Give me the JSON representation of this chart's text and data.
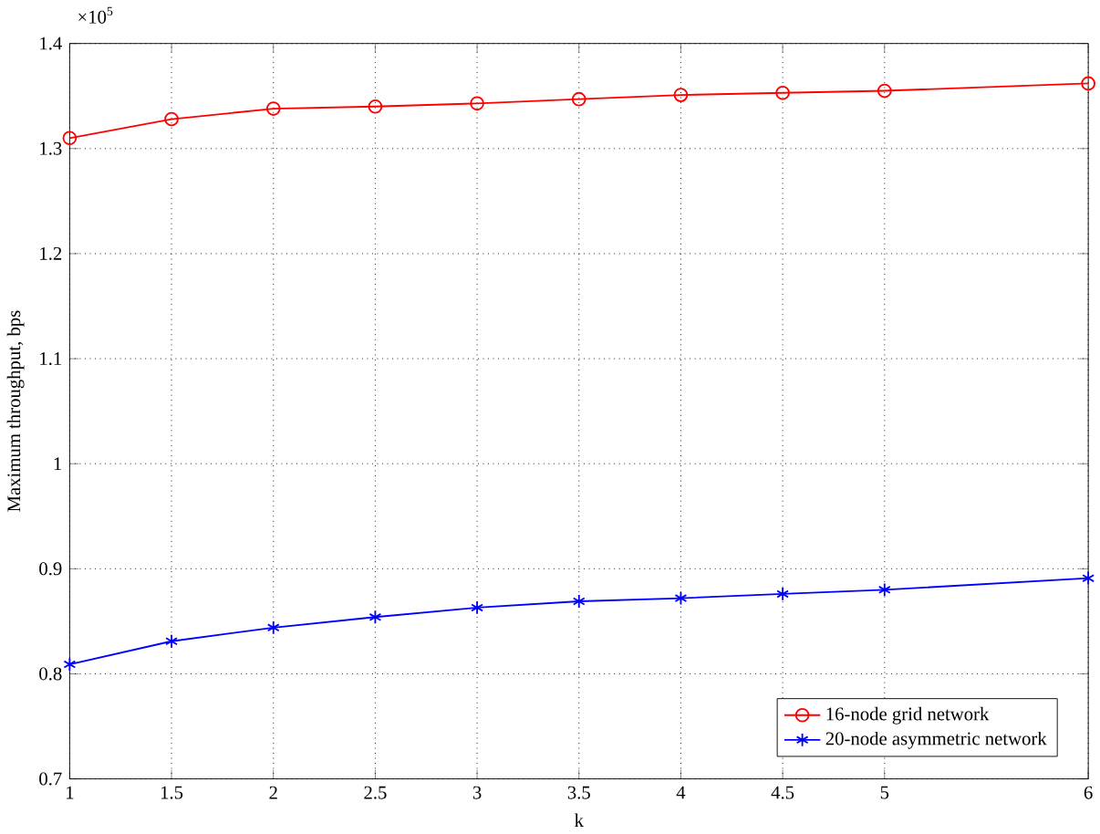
{
  "chart_data": {
    "type": "line",
    "xlabel": "k",
    "ylabel": "Maximum throughput, bps",
    "annotations": [
      "×10$^{5}$"
    ],
    "x": [
      1,
      1.5,
      2,
      2.5,
      3,
      3.5,
      4,
      4.5,
      5,
      6
    ],
    "series": [
      {
        "name": "16-node grid network",
        "color": "#ff0000",
        "marker": "circle",
        "values": [
          1.31,
          1.328,
          1.338,
          1.34,
          1.343,
          1.347,
          1.351,
          1.353,
          1.355,
          1.362
        ]
      },
      {
        "name": "20-node asymmetric network",
        "color": "#0000ff",
        "marker": "cross",
        "values": [
          0.809,
          0.831,
          0.844,
          0.854,
          0.863,
          0.869,
          0.872,
          0.876,
          0.88,
          0.891
        ]
      }
    ],
    "xlim": [
      1,
      6
    ],
    "xticks": [
      1,
      1.5,
      2,
      2.5,
      3,
      3.5,
      4,
      4.5,
      5,
      6
    ],
    "ylim": [
      0.7,
      1.4
    ],
    "yticks": [
      0.7,
      0.8,
      0.9,
      1,
      1.1,
      1.2,
      1.3,
      1.4
    ],
    "grid": true,
    "legend": "bottom right",
    "line_style": "solid"
  }
}
